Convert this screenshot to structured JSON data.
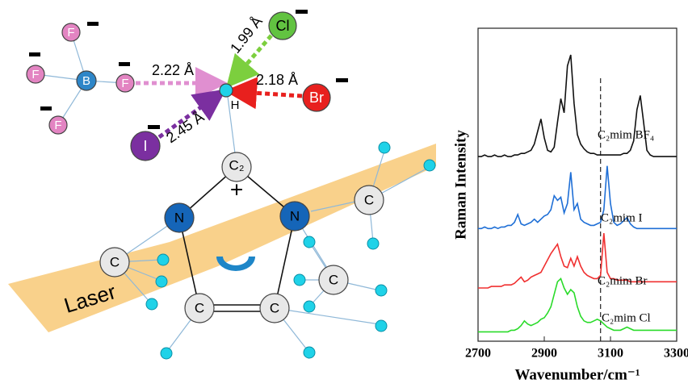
{
  "diagram": {
    "atoms": [
      "F",
      "F",
      "F",
      "F",
      "B",
      "Cl",
      "Br",
      "I",
      "H",
      "C₂",
      "N",
      "N",
      "C",
      "C",
      "C",
      "C",
      "C"
    ],
    "distances": [
      "2.22 Å",
      "1.99 Å",
      "2.18 Å",
      "2.45 Å"
    ],
    "laser": "Laser",
    "charge": "+"
  },
  "chart_data": {
    "type": "line",
    "xlabel": "Wavenumber/cm⁻¹",
    "ylabel": "Raman Intensity",
    "xlim": [
      2700,
      3300
    ],
    "xticks": [
      2700,
      2900,
      3100,
      3300
    ],
    "ylim": [
      0,
      100
    ],
    "reference_line": 3070,
    "x": [
      2700,
      2710,
      2720,
      2730,
      2740,
      2750,
      2760,
      2770,
      2780,
      2790,
      2800,
      2810,
      2820,
      2830,
      2840,
      2850,
      2860,
      2870,
      2880,
      2890,
      2900,
      2910,
      2920,
      2930,
      2940,
      2950,
      2960,
      2970,
      2980,
      2990,
      3000,
      3010,
      3020,
      3030,
      3040,
      3050,
      3060,
      3070,
      3080,
      3090,
      3100,
      3110,
      3120,
      3130,
      3140,
      3150,
      3160,
      3170,
      3180,
      3190,
      3200,
      3210,
      3220,
      3230,
      3240,
      3250,
      3260,
      3270,
      3280,
      3290,
      3300
    ],
    "series": [
      {
        "name": "C₂mim BF₄",
        "color": "#111111",
        "values": [
          59,
          59,
          59.5,
          59,
          59,
          59.5,
          59,
          59,
          59.5,
          59,
          59,
          59.5,
          59.5,
          60,
          60,
          60.5,
          61,
          63,
          67,
          71,
          65,
          61,
          60.5,
          62,
          70,
          77.5,
          73,
          88,
          91.5,
          76,
          66,
          63,
          61.5,
          60.5,
          60,
          60,
          59.5,
          59.5,
          59.5,
          59.5,
          59.5,
          59.5,
          59.5,
          59.5,
          60,
          60,
          61,
          64,
          74,
          78.5,
          70,
          61,
          59.5,
          59,
          59,
          59,
          59,
          59,
          59,
          59,
          59
        ]
      },
      {
        "name": "C₂mim I",
        "color": "#1f6fd6",
        "values": [
          36,
          36,
          36.5,
          36,
          36,
          36.5,
          36,
          36.5,
          36.5,
          37,
          37,
          38,
          40.5,
          37.5,
          37,
          37.5,
          38,
          39,
          38,
          39,
          40,
          40.5,
          42,
          46.5,
          45,
          46,
          41,
          44,
          54,
          42,
          44,
          39,
          38,
          37.5,
          37,
          37,
          37.5,
          38,
          42,
          56,
          44,
          38,
          37,
          37.5,
          38.5,
          39.5,
          37.5,
          36.5,
          36,
          36,
          36,
          36,
          36,
          36,
          36,
          36,
          36,
          36,
          36,
          36,
          36
        ]
      },
      {
        "name": "C₂mim Br",
        "color": "#f03030",
        "values": [
          17,
          17,
          17,
          17,
          17.5,
          17.5,
          17.5,
          17.5,
          18,
          18,
          18,
          18.5,
          19.5,
          20.5,
          19,
          19.5,
          20.5,
          21,
          21.5,
          22,
          24,
          26,
          28,
          29.5,
          31,
          27,
          24,
          23.5,
          26.5,
          24,
          27,
          24,
          22,
          21,
          20.5,
          20,
          20,
          21,
          34.5,
          22,
          20,
          20,
          19.5,
          19.5,
          19.5,
          19.5,
          19,
          19,
          19,
          19,
          19,
          19,
          19,
          19,
          19,
          19,
          19,
          19,
          19,
          19,
          19
        ]
      },
      {
        "name": "C₂mim Cl",
        "color": "#2adb2a",
        "values": [
          3,
          3,
          3,
          3,
          3,
          3,
          3,
          3,
          3,
          3,
          3.5,
          3.5,
          4,
          5,
          6.5,
          5.5,
          5,
          5.5,
          6,
          7,
          7.5,
          9,
          11,
          15,
          19,
          20,
          17,
          15,
          16.5,
          15.5,
          11,
          8,
          6.5,
          6,
          6,
          6.5,
          7,
          6.5,
          5.5,
          4.5,
          4,
          3.5,
          3.5,
          3.5,
          4,
          4.5,
          4,
          3.5,
          3.5,
          3.5,
          3.5,
          3.5,
          3.5,
          3.5,
          3.5,
          3.5,
          3.5,
          3.5,
          3.5,
          3.5,
          3.5
        ]
      }
    ]
  }
}
